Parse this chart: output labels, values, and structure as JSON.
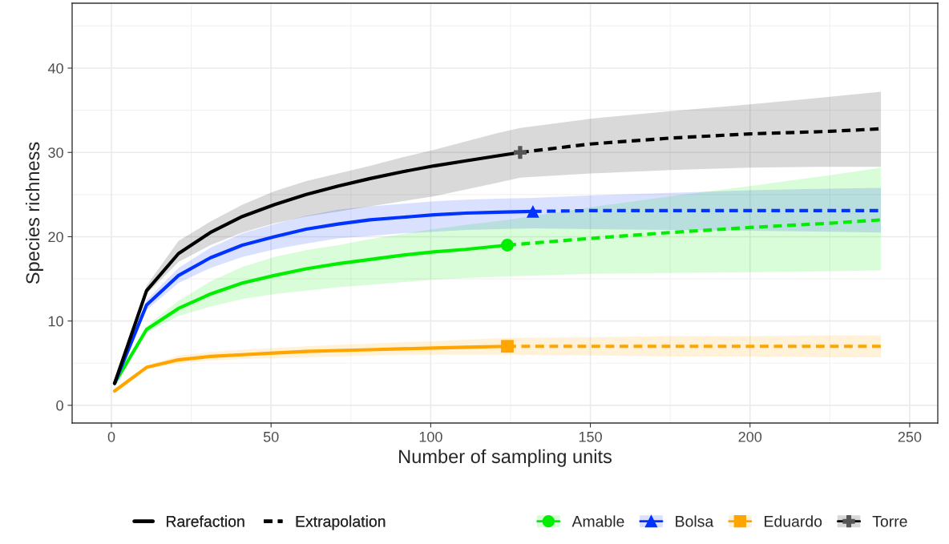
{
  "chart_data": {
    "type": "line",
    "xlabel": "Number of sampling units",
    "ylabel": "Species richness",
    "xlim": [
      -12.3,
      258.8
    ],
    "ylim": [
      -2.1,
      47.7
    ],
    "xticks": [
      0,
      50,
      100,
      150,
      200,
      250
    ],
    "yticks": [
      0,
      10,
      20,
      30,
      40
    ],
    "grid": true,
    "legend": "bottom",
    "annotations": [
      "Rarefaction",
      "Extrapolation"
    ],
    "series": [
      {
        "name": "Amable",
        "color": "#00ee00",
        "line_style": "solid",
        "x": [
          1,
          11,
          21,
          31,
          41,
          51,
          61,
          71,
          81,
          91,
          101,
          111,
          124
        ],
        "values": [
          2.6,
          9,
          11.5,
          13.2,
          14.5,
          15.4,
          16.2,
          16.8,
          17.3,
          17.8,
          18.2,
          18.5,
          19
        ],
        "lower": [
          2.5,
          8.6,
          10.6,
          11.7,
          12.6,
          13.2,
          13.6,
          14,
          14.3,
          14.6,
          14.9,
          15.1,
          15.3
        ],
        "upper": [
          2.7,
          9.4,
          12.4,
          14.7,
          16.4,
          17.6,
          18.4,
          19,
          19.7,
          20.3,
          20.9,
          21.4,
          22
        ]
      },
      {
        "color": "#00ee00",
        "line_style": "dashed",
        "x": [
          124,
          150,
          175,
          200,
          225,
          241
        ],
        "values": [
          19,
          19.8,
          20.5,
          21.1,
          21.6,
          22
        ],
        "lower": [
          15.3,
          15.6,
          15.7,
          15.8,
          15.9,
          16
        ],
        "upper": [
          22,
          23.5,
          24.8,
          26,
          27.3,
          28.2
        ]
      },
      {
        "name": "Bolsa",
        "color": "#0033ff",
        "line_style": "solid",
        "x": [
          1,
          11,
          21,
          31,
          41,
          51,
          61,
          71,
          81,
          91,
          101,
          111,
          121,
          132
        ],
        "values": [
          2.6,
          11.9,
          15.4,
          17.5,
          19,
          20,
          20.9,
          21.5,
          22,
          22.3,
          22.6,
          22.8,
          22.9,
          23
        ],
        "lower": [
          2.5,
          11.3,
          14.5,
          16.3,
          17.6,
          18.5,
          19.2,
          19.8,
          20.1,
          20.4,
          20.6,
          20.8,
          20.9,
          21
        ],
        "upper": [
          2.7,
          12.5,
          16.3,
          18.7,
          20.4,
          21.5,
          22.5,
          23.2,
          23.6,
          23.9,
          24.2,
          24.4,
          24.5,
          24.6
        ]
      },
      {
        "color": "#0033ff",
        "line_style": "dashed",
        "x": [
          132,
          150,
          175,
          200,
          225,
          241
        ],
        "values": [
          23,
          23.1,
          23.1,
          23.1,
          23.1,
          23.1
        ],
        "lower": [
          21,
          20.9,
          20.8,
          20.7,
          20.6,
          20.5
        ],
        "upper": [
          24.6,
          24.9,
          25.2,
          25.5,
          25.7,
          25.8
        ]
      },
      {
        "name": "Eduardo",
        "color": "#ffa500",
        "line_style": "solid",
        "x": [
          1,
          11,
          21,
          31,
          41,
          51,
          61,
          71,
          81,
          91,
          101,
          111,
          124
        ],
        "values": [
          1.7,
          4.5,
          5.4,
          5.8,
          6,
          6.2,
          6.4,
          6.5,
          6.6,
          6.7,
          6.8,
          6.9,
          7
        ],
        "lower": [
          1.6,
          4.3,
          5,
          5.3,
          5.5,
          5.6,
          5.7,
          5.8,
          5.9,
          6,
          6,
          6,
          6
        ],
        "upper": [
          1.8,
          4.7,
          5.9,
          6.3,
          6.6,
          6.8,
          7,
          7.2,
          7.3,
          7.5,
          7.6,
          7.8,
          8
        ]
      },
      {
        "color": "#ffa500",
        "line_style": "dashed",
        "x": [
          124,
          150,
          175,
          200,
          225,
          241
        ],
        "values": [
          7,
          7,
          7,
          7,
          7,
          7
        ],
        "lower": [
          6,
          5.9,
          5.8,
          5.8,
          5.7,
          5.7
        ],
        "upper": [
          8,
          8.1,
          8.2,
          8.2,
          8.3,
          8.3
        ]
      },
      {
        "name": "Torre",
        "color": "#000000",
        "line_style": "solid",
        "x": [
          1,
          11,
          21,
          31,
          41,
          51,
          61,
          71,
          81,
          91,
          101,
          111,
          121,
          128
        ],
        "values": [
          2.6,
          13.6,
          18,
          20.5,
          22.4,
          23.8,
          25,
          26,
          26.9,
          27.7,
          28.4,
          29,
          29.6,
          30
        ],
        "lower": [
          2.5,
          13.2,
          17,
          19,
          20.5,
          21.6,
          22.4,
          23,
          23.6,
          24.2,
          24.8,
          25.6,
          26.4,
          27
        ],
        "upper": [
          2.7,
          14.2,
          19.5,
          21.8,
          23.8,
          25.4,
          26.6,
          27.5,
          28.4,
          29.4,
          30.3,
          31.3,
          32.3,
          32.9
        ]
      },
      {
        "color": "#000000",
        "line_style": "dashed",
        "x": [
          128,
          150,
          175,
          200,
          225,
          241
        ],
        "values": [
          30,
          31,
          31.7,
          32.2,
          32.5,
          32.8
        ],
        "lower": [
          27,
          27.5,
          27.9,
          28.2,
          28.3,
          28.3
        ],
        "upper": [
          32.9,
          34,
          34.9,
          35.7,
          36.6,
          37.2
        ]
      },
      {
        "type": "scatter",
        "color": "#00ee00",
        "marker": "circle",
        "x": [
          124
        ],
        "values": [
          19
        ]
      },
      {
        "type": "scatter",
        "color": "#0033ff",
        "marker": "triangle",
        "x": [
          132
        ],
        "values": [
          23
        ]
      },
      {
        "type": "scatter",
        "color": "#ffa500",
        "marker": "square",
        "x": [
          124
        ],
        "values": [
          7
        ]
      },
      {
        "type": "scatter",
        "color": "#555555",
        "marker": "cross",
        "x": [
          128
        ],
        "values": [
          30
        ]
      }
    ]
  }
}
